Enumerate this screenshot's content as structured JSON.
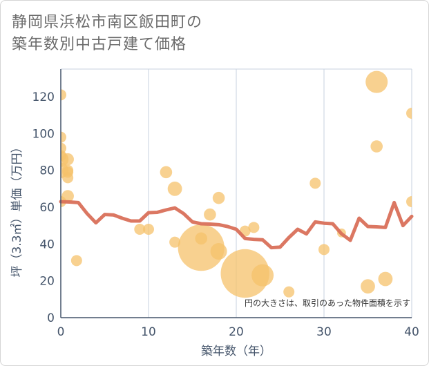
{
  "chart_data": {
    "type": "scatter",
    "title_line1": "静岡県浜松市南区飯田町の",
    "title_line2": "築年数別中古戸建て価格",
    "xlabel": "築年数（年）",
    "ylabel": "坪（3.3㎡）単価（万円）",
    "note": "円の大きさは、取引のあった物件面積を示す",
    "xlim": [
      0,
      40
    ],
    "ylim": [
      0,
      135
    ],
    "x_ticks": [
      0,
      10,
      20,
      30,
      40
    ],
    "y_ticks": [
      0,
      20,
      40,
      60,
      80,
      100,
      120
    ],
    "grid": true,
    "colors": {
      "bubble": "#f5c26b",
      "line": "#d9705a",
      "grid": "#c7d2df",
      "axis": "#44546a"
    },
    "bubbles": [
      {
        "x": 0,
        "y": 121,
        "size": 1
      },
      {
        "x": 0,
        "y": 98,
        "size": 1
      },
      {
        "x": 0,
        "y": 92,
        "size": 1
      },
      {
        "x": 0,
        "y": 88,
        "size": 1
      },
      {
        "x": 0,
        "y": 86,
        "size": 1.4
      },
      {
        "x": 0,
        "y": 80,
        "size": 1.4
      },
      {
        "x": 0,
        "y": 63,
        "size": 1
      },
      {
        "x": 0.8,
        "y": 86,
        "size": 1.1
      },
      {
        "x": 0.8,
        "y": 80,
        "size": 1
      },
      {
        "x": 0.8,
        "y": 79,
        "size": 1
      },
      {
        "x": 0.8,
        "y": 76,
        "size": 1
      },
      {
        "x": 0.8,
        "y": 66,
        "size": 1.1
      },
      {
        "x": 1.8,
        "y": 31,
        "size": 1
      },
      {
        "x": 9,
        "y": 48,
        "size": 1
      },
      {
        "x": 10,
        "y": 48,
        "size": 1
      },
      {
        "x": 12,
        "y": 79,
        "size": 1.1
      },
      {
        "x": 13,
        "y": 70,
        "size": 1.3
      },
      {
        "x": 13,
        "y": 41,
        "size": 1
      },
      {
        "x": 16,
        "y": 38,
        "size": 4.2
      },
      {
        "x": 16,
        "y": 43,
        "size": 1.1
      },
      {
        "x": 17,
        "y": 56,
        "size": 1.1
      },
      {
        "x": 18,
        "y": 65,
        "size": 1.1
      },
      {
        "x": 18,
        "y": 36,
        "size": 1.5
      },
      {
        "x": 21,
        "y": 47,
        "size": 1
      },
      {
        "x": 21,
        "y": 24,
        "size": 4.4
      },
      {
        "x": 22,
        "y": 49,
        "size": 1
      },
      {
        "x": 23,
        "y": 23,
        "size": 2
      },
      {
        "x": 26,
        "y": 14,
        "size": 1
      },
      {
        "x": 29,
        "y": 73,
        "size": 1
      },
      {
        "x": 30,
        "y": 37,
        "size": 1
      },
      {
        "x": 32,
        "y": 46,
        "size": 0.8
      },
      {
        "x": 35,
        "y": 17,
        "size": 1.3
      },
      {
        "x": 36,
        "y": 128,
        "size": 2
      },
      {
        "x": 36,
        "y": 93,
        "size": 1.1
      },
      {
        "x": 37,
        "y": 21,
        "size": 1.3
      },
      {
        "x": 40,
        "y": 111,
        "size": 1
      },
      {
        "x": 40,
        "y": 63,
        "size": 1
      }
    ],
    "trend_line": {
      "x": [
        0,
        1,
        2,
        3,
        4,
        5,
        6,
        7,
        8,
        9,
        10,
        11,
        12,
        13,
        14,
        15,
        16,
        17,
        18,
        19,
        20,
        21,
        22,
        23,
        24,
        25,
        26,
        27,
        28,
        29,
        30,
        31,
        32,
        33,
        34,
        35,
        36,
        37,
        38,
        39,
        40
      ],
      "y": [
        63,
        62.8,
        62.5,
        56.5,
        51.5,
        56,
        55.8,
        54,
        52.5,
        52.5,
        57,
        57.2,
        58.5,
        59.6,
        56.5,
        52,
        51,
        50.8,
        50.5,
        49.5,
        48,
        43,
        42.5,
        42.3,
        38,
        38.3,
        43.5,
        48,
        45.5,
        52,
        51.3,
        51,
        45.5,
        42,
        54,
        49.5,
        49.3,
        49,
        62.5,
        50,
        55
      ]
    }
  }
}
